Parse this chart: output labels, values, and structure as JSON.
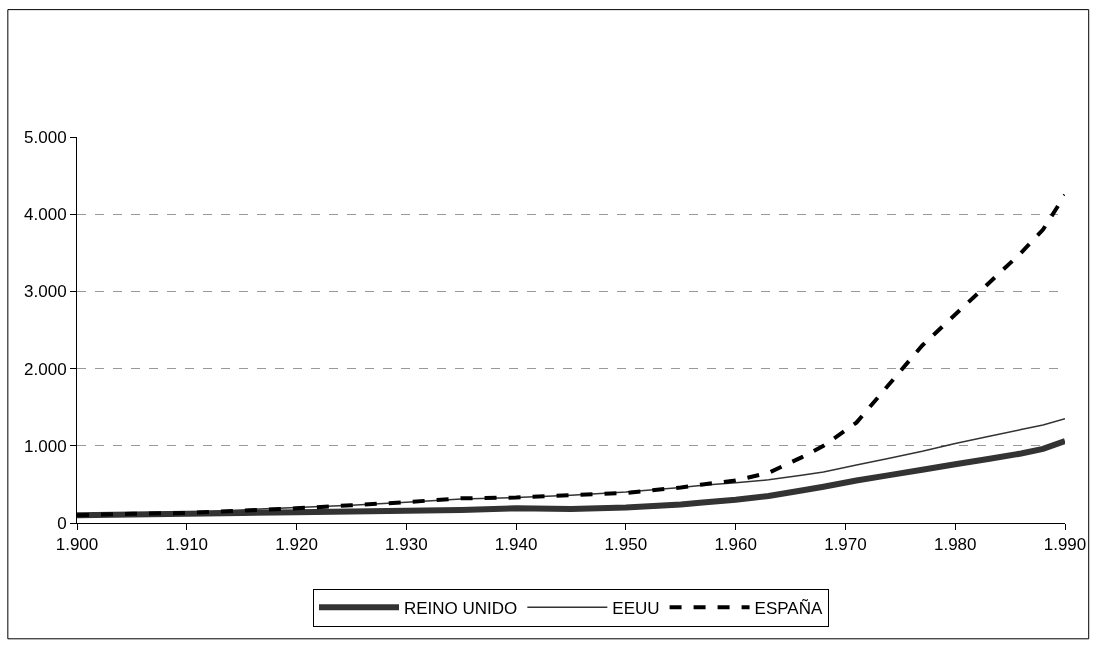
{
  "chart_data": {
    "type": "line",
    "x": [
      1900,
      1905,
      1910,
      1915,
      1920,
      1925,
      1930,
      1935,
      1940,
      1945,
      1950,
      1955,
      1957,
      1960,
      1963,
      1966,
      1968,
      1971,
      1974,
      1977,
      1980,
      1983,
      1986,
      1988,
      1990
    ],
    "series": [
      {
        "name": "REINO UNIDO",
        "color": "#333333",
        "line_style": "solid",
        "values": [
          100,
          110,
          120,
          130,
          140,
          150,
          160,
          170,
          190,
          180,
          200,
          240,
          265,
          300,
          350,
          420,
          470,
          550,
          620,
          690,
          760,
          830,
          900,
          960,
          1060
        ]
      },
      {
        "name": "EEUU",
        "color": "#333333",
        "line_style": "solid",
        "values": [
          100,
          120,
          140,
          170,
          200,
          230,
          270,
          310,
          330,
          360,
          400,
          460,
          490,
          520,
          560,
          620,
          660,
          750,
          840,
          930,
          1030,
          1120,
          1210,
          1270,
          1350
        ]
      },
      {
        "name": "ESPAÑA",
        "color": "#000000",
        "line_style": "dashed",
        "values": [
          100,
          120,
          130,
          160,
          190,
          230,
          270,
          320,
          330,
          360,
          390,
          460,
          500,
          550,
          650,
          850,
          1000,
          1300,
          1800,
          2300,
          2700,
          3100,
          3500,
          3800,
          4250
        ]
      }
    ],
    "xlim": [
      1900,
      1990
    ],
    "xticks": [
      {
        "value": 1900,
        "label": "1.900"
      },
      {
        "value": 1910,
        "label": "1.910"
      },
      {
        "value": 1920,
        "label": "1.920"
      },
      {
        "value": 1930,
        "label": "1.930"
      },
      {
        "value": 1940,
        "label": "1.940"
      },
      {
        "value": 1950,
        "label": "1.950"
      },
      {
        "value": 1960,
        "label": "1.960"
      },
      {
        "value": 1970,
        "label": "1.970"
      },
      {
        "value": 1980,
        "label": "1.980"
      },
      {
        "value": 1990,
        "label": "1.990"
      }
    ],
    "ylim": [
      0,
      5000
    ],
    "yticks": [
      0,
      {
        "value": 1000,
        "label": "1.000"
      },
      {
        "value": 2000,
        "label": "2.000"
      },
      {
        "value": 3000,
        "label": "3.000"
      },
      {
        "value": 4000,
        "label": "4.000"
      },
      {
        "value": 5000,
        "label": "5.000"
      }
    ],
    "grid": "y",
    "legend": "bottom",
    "marker": "none"
  }
}
